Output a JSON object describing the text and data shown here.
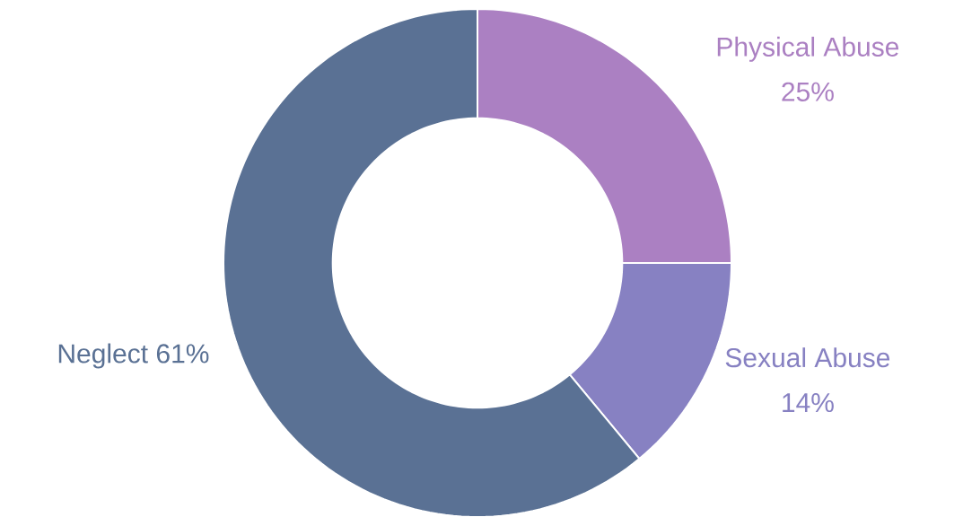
{
  "chart_data": {
    "type": "donut",
    "categories": [
      "Physical Abuse",
      "Sexual Abuse",
      "Neglect"
    ],
    "values": [
      25,
      14,
      61
    ],
    "value_labels": [
      "25%",
      "14%",
      "61%"
    ],
    "colors": [
      "#ab80c2",
      "#8781c2",
      "#5a7194"
    ]
  }
}
